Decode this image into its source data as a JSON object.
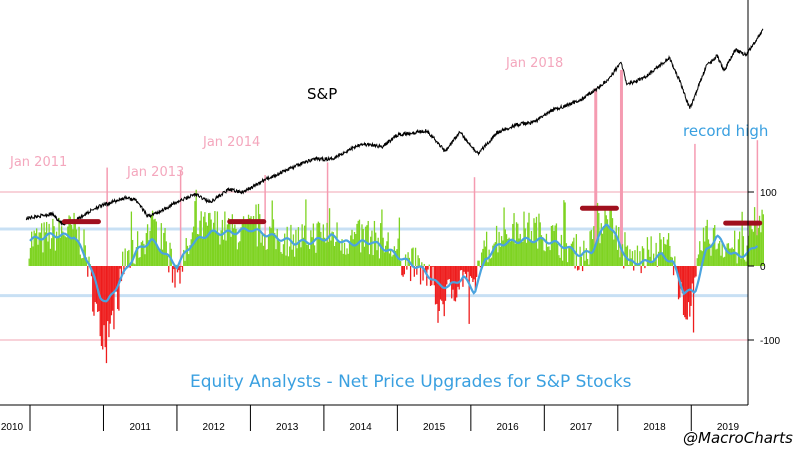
{
  "chart_data": {
    "type": "bar",
    "title": "Equity Analysts - Net Price Upgrades for S&P Stocks",
    "watermark": "@MacroCharts",
    "series_label_sp": "S&P",
    "x_tick_labels": [
      "2010",
      "2011",
      "2012",
      "2013",
      "2014",
      "2015",
      "2016",
      "2017",
      "2018",
      "2019"
    ],
    "y_tick_labels": [
      "100",
      "0",
      "-100"
    ],
    "ylim": [
      -160,
      100
    ],
    "reference_lines": {
      "pink": [
        100,
        -100
      ],
      "blue": [
        50,
        -40
      ]
    },
    "annotations": [
      {
        "text": "Jan 2011",
        "date": 2011.05
      },
      {
        "text": "Jan 2013",
        "date": 2013.05
      },
      {
        "text": "Jan 2014",
        "date": 2014.05
      },
      {
        "text": "Jan 2018",
        "date": 2018.05
      },
      {
        "text": "record high",
        "date": 2019.55
      }
    ],
    "markers": [
      {
        "date": 2010.7,
        "value": 60
      },
      {
        "date": 2012.95,
        "value": 60
      },
      {
        "date": 2017.75,
        "value": 78
      },
      {
        "date": 2019.7,
        "value": 58
      }
    ],
    "spikes": [
      {
        "date": 2011.05,
        "value": 133
      },
      {
        "date": 2012.05,
        "value": 130
      },
      {
        "date": 2013.2,
        "value": 123
      },
      {
        "date": 2014.05,
        "value": 140
      },
      {
        "date": 2016.05,
        "value": 120
      },
      {
        "date": 2017.7,
        "value": 240
      },
      {
        "date": 2018.05,
        "value": 265
      },
      {
        "date": 2019.05,
        "value": 165
      },
      {
        "date": 2019.9,
        "value": 170
      }
    ],
    "net_upgrades_keypoints": [
      [
        2010.1,
        35
      ],
      [
        2010.4,
        45
      ],
      [
        2010.6,
        50
      ],
      [
        2010.75,
        20
      ],
      [
        2010.85,
        -40
      ],
      [
        2010.95,
        -90
      ],
      [
        2011.1,
        -80
      ],
      [
        2011.25,
        0
      ],
      [
        2011.5,
        30
      ],
      [
        2011.65,
        55
      ],
      [
        2011.8,
        40
      ],
      [
        2011.95,
        -10
      ],
      [
        2012.1,
        10
      ],
      [
        2012.25,
        50
      ],
      [
        2012.55,
        55
      ],
      [
        2012.8,
        45
      ],
      [
        2013.05,
        50
      ],
      [
        2013.3,
        40
      ],
      [
        2013.55,
        35
      ],
      [
        2013.8,
        40
      ],
      [
        2014.05,
        45
      ],
      [
        2014.3,
        35
      ],
      [
        2014.6,
        40
      ],
      [
        2014.85,
        30
      ],
      [
        2015.05,
        10
      ],
      [
        2015.25,
        0
      ],
      [
        2015.45,
        -20
      ],
      [
        2015.6,
        -50
      ],
      [
        2015.75,
        -30
      ],
      [
        2015.9,
        -10
      ],
      [
        2016.0,
        -40
      ],
      [
        2016.15,
        20
      ],
      [
        2016.4,
        45
      ],
      [
        2016.6,
        50
      ],
      [
        2016.85,
        50
      ],
      [
        2017.0,
        45
      ],
      [
        2017.2,
        35
      ],
      [
        2017.4,
        20
      ],
      [
        2017.55,
        15
      ],
      [
        2017.7,
        40
      ],
      [
        2017.85,
        80
      ],
      [
        2017.95,
        50
      ],
      [
        2018.1,
        10
      ],
      [
        2018.3,
        10
      ],
      [
        2018.5,
        20
      ],
      [
        2018.65,
        30
      ],
      [
        2018.8,
        -20
      ],
      [
        2018.95,
        -60
      ],
      [
        2019.05,
        -30
      ],
      [
        2019.15,
        40
      ],
      [
        2019.35,
        35
      ],
      [
        2019.55,
        25
      ],
      [
        2019.75,
        20
      ],
      [
        2019.85,
        55
      ],
      [
        2019.95,
        60
      ]
    ],
    "moving_average_keypoints": [
      [
        2010.0,
        35
      ],
      [
        2010.3,
        42
      ],
      [
        2010.6,
        40
      ],
      [
        2010.8,
        5
      ],
      [
        2010.95,
        -40
      ],
      [
        2011.05,
        -50
      ],
      [
        2011.25,
        -15
      ],
      [
        2011.45,
        20
      ],
      [
        2011.65,
        35
      ],
      [
        2011.85,
        15
      ],
      [
        2012.0,
        0
      ],
      [
        2012.2,
        30
      ],
      [
        2012.45,
        45
      ],
      [
        2012.75,
        45
      ],
      [
        2013.0,
        50
      ],
      [
        2013.3,
        40
      ],
      [
        2013.6,
        32
      ],
      [
        2013.85,
        33
      ],
      [
        2014.1,
        40
      ],
      [
        2014.35,
        30
      ],
      [
        2014.65,
        33
      ],
      [
        2014.9,
        20
      ],
      [
        2015.15,
        5
      ],
      [
        2015.35,
        -5
      ],
      [
        2015.55,
        -25
      ],
      [
        2015.7,
        -28
      ],
      [
        2015.9,
        -15
      ],
      [
        2016.05,
        -35
      ],
      [
        2016.2,
        10
      ],
      [
        2016.4,
        30
      ],
      [
        2016.7,
        35
      ],
      [
        2017.0,
        35
      ],
      [
        2017.25,
        28
      ],
      [
        2017.5,
        15
      ],
      [
        2017.65,
        20
      ],
      [
        2017.85,
        60
      ],
      [
        2018.0,
        35
      ],
      [
        2018.15,
        5
      ],
      [
        2018.4,
        5
      ],
      [
        2018.6,
        15
      ],
      [
        2018.75,
        5
      ],
      [
        2018.9,
        -35
      ],
      [
        2019.05,
        -35
      ],
      [
        2019.2,
        20
      ],
      [
        2019.35,
        40
      ],
      [
        2019.55,
        15
      ],
      [
        2019.75,
        15
      ],
      [
        2019.9,
        30
      ]
    ],
    "sp_keypoints": [
      [
        2009.95,
        1130
      ],
      [
        2010.3,
        1180
      ],
      [
        2010.45,
        1060
      ],
      [
        2010.6,
        1100
      ],
      [
        2010.9,
        1250
      ],
      [
        2011.3,
        1360
      ],
      [
        2011.45,
        1330
      ],
      [
        2011.6,
        1150
      ],
      [
        2011.75,
        1200
      ],
      [
        2012.0,
        1310
      ],
      [
        2012.25,
        1400
      ],
      [
        2012.45,
        1310
      ],
      [
        2012.7,
        1450
      ],
      [
        2012.9,
        1420
      ],
      [
        2013.2,
        1560
      ],
      [
        2013.55,
        1690
      ],
      [
        2013.85,
        1790
      ],
      [
        2014.1,
        1790
      ],
      [
        2014.5,
        1960
      ],
      [
        2014.8,
        1930
      ],
      [
        2015.0,
        2060
      ],
      [
        2015.4,
        2110
      ],
      [
        2015.65,
        1880
      ],
      [
        2015.85,
        2090
      ],
      [
        2016.1,
        1850
      ],
      [
        2016.35,
        2080
      ],
      [
        2016.6,
        2170
      ],
      [
        2016.85,
        2200
      ],
      [
        2017.1,
        2330
      ],
      [
        2017.5,
        2450
      ],
      [
        2017.85,
        2660
      ],
      [
        2018.05,
        2870
      ],
      [
        2018.12,
        2620
      ],
      [
        2018.35,
        2690
      ],
      [
        2018.7,
        2920
      ],
      [
        2018.85,
        2650
      ],
      [
        2018.98,
        2350
      ],
      [
        2019.2,
        2820
      ],
      [
        2019.35,
        2940
      ],
      [
        2019.45,
        2780
      ],
      [
        2019.6,
        3010
      ],
      [
        2019.75,
        2950
      ],
      [
        2019.9,
        3140
      ],
      [
        2019.98,
        3230
      ]
    ]
  }
}
